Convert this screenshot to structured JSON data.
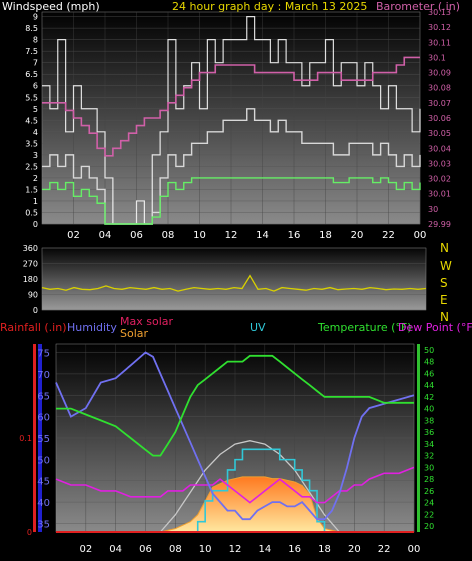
{
  "header": {
    "left_label": "Windspeed (mph)",
    "title": "24 hour graph day : March 13 2025",
    "right_label": "Barometer (.in)"
  },
  "colors": {
    "wind": "#d8d8d8",
    "gust": "#ffffff",
    "wind_green": "#66ee66",
    "barometer": "#d060a8",
    "direction": "#d8d000",
    "humidity": "#7070f0",
    "temperature": "#30e030",
    "dewpoint": "#e020e0",
    "uv": "#30c8d8",
    "solar": "#f0a030",
    "maxsolar": "#c8c8c8",
    "rainfall": "#e02020",
    "yellow_text": "#e8d800"
  },
  "chart_data": [
    {
      "type": "line",
      "title": "24 hour graph day : March 13 2025",
      "ylabel": "Windspeed (mph)",
      "ylabel_right": "Barometer (.in)",
      "x_ticks": [
        "02",
        "04",
        "06",
        "08",
        "10",
        "12",
        "14",
        "16",
        "18",
        "20",
        "22",
        "00"
      ],
      "y_ticks": [
        "0",
        "0.5",
        "1",
        "1.5",
        "2",
        "2.5",
        "3",
        "3.5",
        "4",
        "4.5",
        "5",
        "5.5",
        "6",
        "6.5",
        "7",
        "7.5",
        "8",
        "8.5",
        "9"
      ],
      "ylim": [
        0,
        9.2
      ],
      "y2_ticks": [
        "29.99",
        "30",
        "30.01",
        "30.02",
        "30.03",
        "30.04",
        "30.05",
        "30.06",
        "30.07",
        "30.08",
        "30.09",
        "30.1",
        "30.11",
        "30.12",
        "30.13"
      ],
      "y2lim": [
        29.99,
        30.13
      ],
      "xlim": [
        0,
        24
      ],
      "series": [
        {
          "name": "Windspeed (mph)",
          "x": [
            0,
            0.5,
            1,
            1.5,
            2,
            2.5,
            3,
            3.5,
            4,
            4.5,
            5,
            5.5,
            6,
            6.5,
            7,
            7.5,
            8,
            8.5,
            9,
            9.5,
            10,
            10.5,
            11,
            11.5,
            12,
            12.5,
            13,
            13.5,
            14,
            14.5,
            15,
            15.5,
            16,
            16.5,
            17,
            17.5,
            18,
            18.5,
            19,
            19.5,
            20,
            20.5,
            21,
            21.5,
            22,
            22.5,
            23,
            23.5,
            24
          ],
          "values": [
            2.5,
            3,
            2.5,
            3,
            2,
            2.5,
            2,
            1.5,
            0,
            0,
            0,
            0,
            0,
            0,
            0.5,
            2,
            3,
            2.5,
            3,
            3.5,
            3.5,
            4,
            4,
            4.5,
            4.5,
            4.5,
            5,
            4.5,
            4.5,
            4,
            4.5,
            4,
            4,
            3.5,
            3.5,
            3.5,
            3.5,
            3,
            3,
            3.5,
            3.5,
            3.5,
            3,
            3.5,
            3,
            2.5,
            3,
            2.5,
            3
          ]
        },
        {
          "name": "Gust",
          "x": [
            0,
            0.5,
            1,
            1.5,
            2,
            2.5,
            3,
            3.5,
            4,
            4.5,
            5,
            5.5,
            6,
            6.5,
            7,
            7.5,
            8,
            8.5,
            9,
            9.5,
            10,
            10.5,
            11,
            11.5,
            12,
            12.5,
            13,
            13.5,
            14,
            14.5,
            15,
            15.5,
            16,
            16.5,
            17,
            17.5,
            18,
            18.5,
            19,
            19.5,
            20,
            20.5,
            21,
            21.5,
            22,
            22.5,
            23,
            23.5,
            24
          ],
          "values": [
            6,
            5,
            8,
            4,
            6,
            5,
            5,
            4,
            2,
            0,
            0,
            0,
            1,
            0,
            3,
            4,
            8,
            5,
            6,
            7,
            5,
            8,
            7,
            8,
            8,
            8,
            9,
            8,
            8,
            7,
            8,
            7,
            7,
            6,
            7,
            7,
            8,
            6,
            7,
            7,
            6,
            7,
            6,
            5,
            6,
            5,
            5,
            4,
            5
          ]
        },
        {
          "name": "Barometer (.in)",
          "axis": "right",
          "x": [
            0,
            0.5,
            1,
            1.5,
            2,
            2.5,
            3,
            3.5,
            4,
            4.5,
            5,
            5.5,
            6,
            6.5,
            7,
            7.5,
            8,
            8.5,
            9,
            9.5,
            10,
            10.5,
            11,
            11.5,
            12,
            12.5,
            13,
            13.5,
            14,
            14.5,
            15,
            15.5,
            16,
            16.5,
            17,
            17.5,
            18,
            18.5,
            19,
            19.5,
            20,
            20.5,
            21,
            21.5,
            22,
            22.5,
            23,
            23.5,
            24
          ],
          "values": [
            30.07,
            30.07,
            30.07,
            30.065,
            30.06,
            30.055,
            30.05,
            30.04,
            30.035,
            30.04,
            30.045,
            30.05,
            30.055,
            30.06,
            30.06,
            30.065,
            30.07,
            30.075,
            30.08,
            30.085,
            30.09,
            30.09,
            30.095,
            30.095,
            30.095,
            30.095,
            30.095,
            30.09,
            30.09,
            30.09,
            30.09,
            30.09,
            30.085,
            30.085,
            30.085,
            30.09,
            30.09,
            30.09,
            30.085,
            30.085,
            30.085,
            30.085,
            30.09,
            30.09,
            30.09,
            30.095,
            30.1,
            30.1,
            30.1
          ]
        }
      ]
    },
    {
      "type": "line",
      "ylabel_right": "N W S E N",
      "y_ticks": [
        "0",
        "90",
        "180",
        "270",
        "360"
      ],
      "ylim": [
        0,
        360
      ],
      "xlim": [
        0,
        24
      ],
      "series": [
        {
          "name": "Wind direction",
          "x": [
            0,
            0.5,
            1,
            1.5,
            2,
            2.5,
            3,
            3.5,
            4,
            4.5,
            5,
            5.5,
            6,
            6.5,
            7,
            7.5,
            8,
            8.5,
            9,
            9.5,
            10,
            10.5,
            11,
            11.5,
            12,
            12.5,
            13,
            13.5,
            14,
            14.5,
            15,
            15.5,
            16,
            16.5,
            17,
            17.5,
            18,
            18.5,
            19,
            19.5,
            20,
            20.5,
            21,
            21.5,
            22,
            22.5,
            23,
            23.5,
            24
          ],
          "values": [
            130,
            120,
            125,
            115,
            130,
            120,
            118,
            125,
            140,
            125,
            120,
            130,
            125,
            120,
            130,
            120,
            125,
            110,
            120,
            130,
            125,
            120,
            125,
            120,
            130,
            125,
            200,
            120,
            125,
            110,
            130,
            125,
            120,
            115,
            125,
            120,
            130,
            118,
            122,
            125,
            120,
            130,
            125,
            118,
            122,
            120,
            125,
            120,
            125
          ]
        }
      ]
    },
    {
      "type": "line",
      "legend": [
        "Rainfall (.in)",
        "Humidity",
        "Max solar",
        "Solar",
        "UV",
        "Temperature (°F)",
        "Dew Point (°F)"
      ],
      "y_ticks_rain": [
        "0",
        "0.1"
      ],
      "rainlim": [
        0,
        0.2
      ],
      "y_ticks_humidity": [
        "35",
        "40",
        "45",
        "50",
        "55",
        "60",
        "65",
        "70",
        "75"
      ],
      "humiditylim": [
        33,
        77
      ],
      "y_ticks_temp": [
        "20",
        "22",
        "24",
        "26",
        "28",
        "30",
        "32",
        "34",
        "36",
        "38",
        "40",
        "42",
        "44",
        "46",
        "48",
        "50"
      ],
      "templim": [
        19,
        51
      ],
      "x_ticks": [
        "02",
        "04",
        "06",
        "08",
        "10",
        "12",
        "14",
        "16",
        "18",
        "20",
        "22",
        "00"
      ],
      "xlim": [
        0,
        24
      ],
      "series": [
        {
          "name": "Humidity",
          "x": [
            0,
            1,
            2,
            3,
            4,
            5,
            6,
            6.5,
            7,
            7.5,
            8,
            8.5,
            9,
            9.5,
            10,
            10.5,
            11,
            11.5,
            12,
            12.5,
            13,
            13.5,
            14,
            14.5,
            15,
            15.5,
            16,
            16.5,
            17,
            17.5,
            18,
            18.5,
            19,
            19.5,
            20,
            20.5,
            21,
            22,
            23,
            24
          ],
          "values": [
            68,
            60,
            62,
            68,
            69,
            72,
            75,
            74,
            70,
            66,
            62,
            58,
            54,
            50,
            46,
            42,
            40,
            38,
            38,
            36,
            36,
            38,
            39,
            40,
            40,
            39,
            39,
            40,
            38,
            36,
            36,
            38,
            42,
            48,
            55,
            60,
            62,
            63,
            64,
            65
          ]
        },
        {
          "name": "Temperature (°F)",
          "x": [
            0,
            1,
            2,
            3,
            4,
            5,
            6,
            6.5,
            7,
            7.5,
            8,
            8.5,
            9,
            9.5,
            10,
            10.5,
            11,
            11.5,
            12,
            12.5,
            13,
            13.5,
            14,
            14.5,
            15,
            15.5,
            16,
            16.5,
            17,
            17.5,
            18,
            18.5,
            19,
            19.5,
            20,
            20.5,
            21,
            22,
            23,
            24
          ],
          "values": [
            40,
            40,
            39,
            38,
            37,
            35,
            33,
            32,
            32,
            34,
            36,
            39,
            42,
            44,
            45,
            46,
            47,
            48,
            48,
            48,
            49,
            49,
            49,
            49,
            48,
            47,
            46,
            45,
            44,
            43,
            42,
            42,
            42,
            42,
            42,
            42,
            42,
            41,
            41,
            41
          ]
        },
        {
          "name": "Dew Point (°F)",
          "x": [
            0,
            1,
            2,
            3,
            4,
            5,
            6,
            6.5,
            7,
            7.5,
            8,
            8.5,
            9,
            9.5,
            10,
            10.5,
            11,
            11.5,
            12,
            12.5,
            13,
            13.5,
            14,
            14.5,
            15,
            15.5,
            16,
            16.5,
            17,
            17.5,
            18,
            18.5,
            19,
            19.5,
            20,
            20.5,
            21,
            22,
            23,
            24
          ],
          "values": [
            28,
            27,
            27,
            26,
            26,
            25,
            25,
            25,
            25,
            26,
            26,
            26,
            27,
            27,
            27,
            27,
            28,
            27,
            26,
            25,
            24,
            25,
            26,
            27,
            28,
            27,
            26,
            25,
            25,
            24,
            24,
            25,
            26,
            26,
            27,
            27,
            28,
            29,
            29,
            30
          ]
        },
        {
          "name": "UV",
          "x": [
            0,
            9,
            9.5,
            10,
            10.5,
            11,
            11.5,
            12,
            12.5,
            13,
            13.5,
            14,
            14.5,
            15,
            15.5,
            16,
            16.5,
            17,
            17.5,
            18,
            24
          ],
          "values": [
            0,
            0,
            0.5,
            1.5,
            2,
            2,
            3,
            3.5,
            4,
            4,
            4,
            4,
            4,
            3.5,
            3.5,
            3,
            2.5,
            2,
            0.5,
            0,
            0
          ],
          "axis_note": "scaled to 0-5 units on plot height"
        },
        {
          "name": "Max solar",
          "x": [
            7,
            8,
            9,
            10,
            11,
            12,
            13,
            14,
            15,
            16,
            17,
            18,
            19
          ],
          "values": [
            0,
            100,
            230,
            360,
            450,
            510,
            530,
            510,
            450,
            360,
            230,
            100,
            0
          ]
        },
        {
          "name": "Solar",
          "x": [
            7,
            8,
            9,
            9.5,
            10,
            10.5,
            11,
            11.5,
            12,
            12.5,
            13,
            13.5,
            14,
            14.5,
            15,
            15.5,
            16,
            16.5,
            17,
            17.5,
            18,
            19
          ],
          "values": [
            0,
            20,
            60,
            100,
            180,
            260,
            280,
            300,
            310,
            320,
            320,
            320,
            320,
            310,
            310,
            300,
            290,
            270,
            220,
            80,
            20,
            0
          ]
        },
        {
          "name": "Rainfall (.in)",
          "x": [
            0,
            24
          ],
          "values": [
            0,
            0
          ]
        }
      ]
    }
  ]
}
